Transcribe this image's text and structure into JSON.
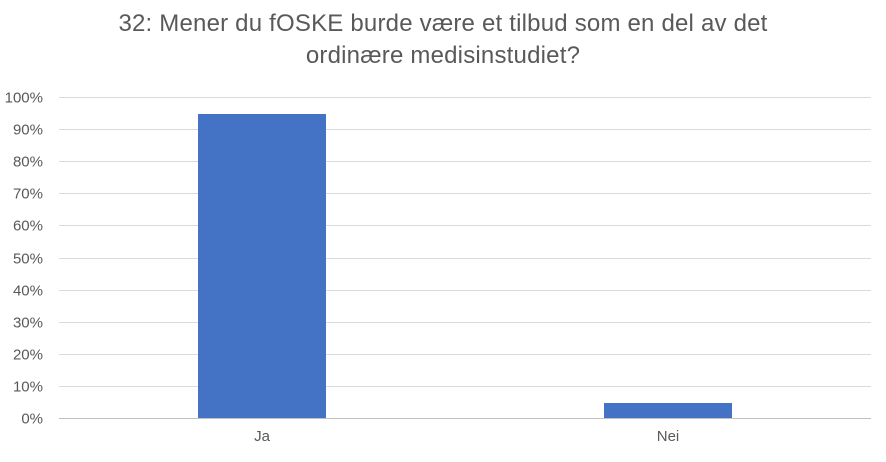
{
  "title": "32: Mener du fOSKE burde være et tilbud som en del av det ordinære medisinstudiet?",
  "colors": {
    "bar": "#4472C4",
    "gridline": "#DADADA",
    "axis_line": "#C1C1C1",
    "text": "#595959",
    "background": "#FFFFFF"
  },
  "chart_data": {
    "type": "bar",
    "title": "32: Mener du fOSKE burde være et tilbud som en del av det ordinære medisinstudiet?",
    "categories": [
      "Ja",
      "Nei"
    ],
    "values": [
      95,
      5
    ],
    "xlabel": "",
    "ylabel": "",
    "ylim": [
      0,
      100
    ],
    "ytick_step": 10,
    "ytick_labels": [
      "0%",
      "10%",
      "20%",
      "30%",
      "40%",
      "50%",
      "60%",
      "70%",
      "80%",
      "90%",
      "100%"
    ],
    "grid": true,
    "legend": false
  }
}
